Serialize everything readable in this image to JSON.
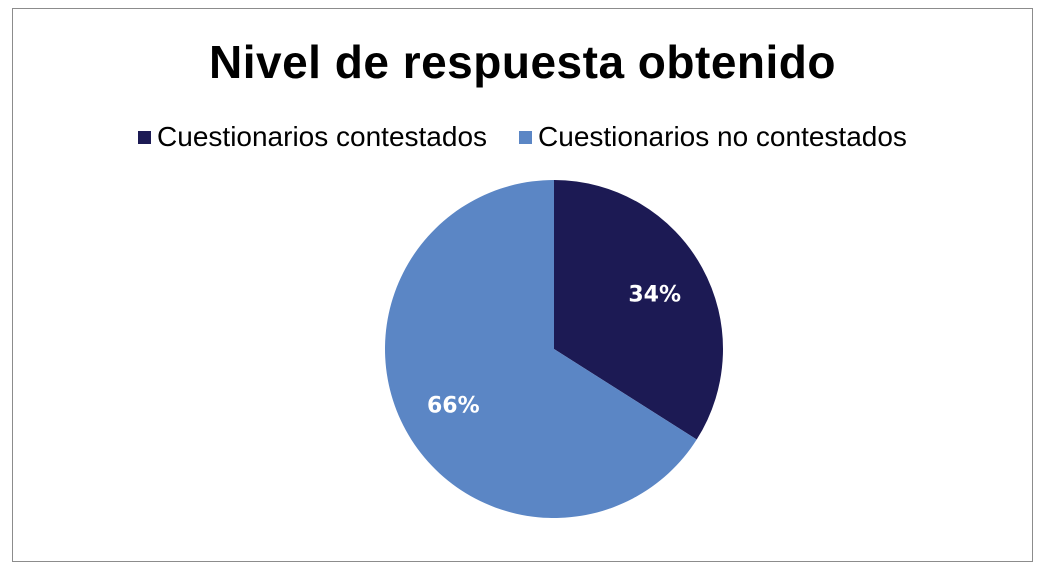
{
  "chart_data": {
    "type": "pie",
    "title": "Nivel de respuesta obtenido",
    "legend_position": "top",
    "categories": [
      "Cuestionarios contestados",
      "Cuestionarios no contestados"
    ],
    "values": [
      34,
      66
    ],
    "data_labels": [
      "34%",
      "66%"
    ],
    "colors": [
      "#1c1a54",
      "#5b86c5"
    ],
    "start_angle_deg": 0,
    "direction": "clockwise"
  }
}
